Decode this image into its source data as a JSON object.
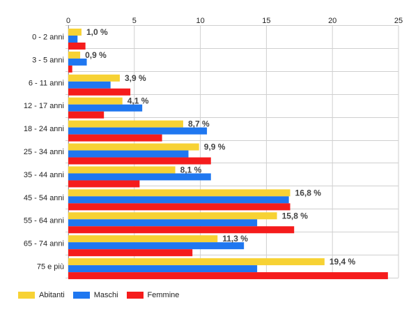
{
  "chart_data": {
    "type": "bar",
    "orientation": "horizontal",
    "categories": [
      "0 - 2 anni",
      "3 - 5 anni",
      "6 - 11 anni",
      "12 - 17 anni",
      "18 - 24 anni",
      "25 - 34 anni",
      "35 - 44 anni",
      "45 - 54 anni",
      "55 - 64 anni",
      "65 - 74 anni",
      "75 e più"
    ],
    "series": [
      {
        "name": "Abitanti",
        "color": "#f7d234",
        "values": [
          1.0,
          0.9,
          3.9,
          4.1,
          8.7,
          9.9,
          8.1,
          16.8,
          15.8,
          11.3,
          19.4
        ],
        "labels": [
          "1,0 %",
          "0,9 %",
          "3,9 %",
          "4,1 %",
          "8,7 %",
          "9,9 %",
          "8,1 %",
          "16,8 %",
          "15,8 %",
          "11,3 %",
          "19,4 %"
        ]
      },
      {
        "name": "Maschi",
        "color": "#1f77f0",
        "values": [
          0.7,
          1.4,
          3.2,
          5.6,
          10.5,
          9.1,
          10.8,
          16.7,
          14.3,
          13.3,
          14.3
        ]
      },
      {
        "name": "Femmine",
        "color": "#f51c1c",
        "values": [
          1.3,
          0.3,
          4.7,
          2.7,
          7.1,
          10.8,
          5.4,
          16.8,
          17.1,
          9.4,
          24.2
        ]
      }
    ],
    "xlim": [
      0,
      25
    ],
    "xticks": [
      0,
      5,
      10,
      15,
      20,
      25
    ],
    "grid": true,
    "legend_position": "bottom-left"
  }
}
